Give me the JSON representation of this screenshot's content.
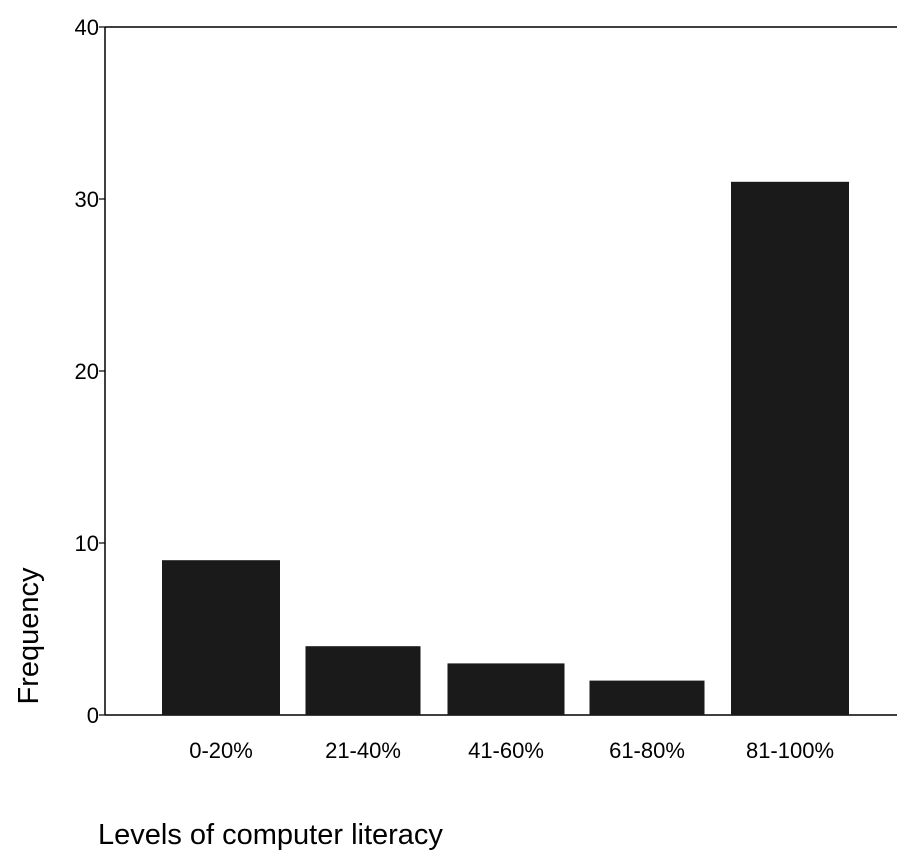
{
  "chart_data": {
    "type": "bar",
    "title": "",
    "xlabel": "Levels of computer literacy",
    "ylabel": "Frequency",
    "categories": [
      "0-20%",
      "21-40%",
      "41-60%",
      "61-80%",
      "81-100%"
    ],
    "values": [
      9,
      4,
      3,
      2,
      31
    ],
    "ylim": [
      0,
      40
    ],
    "yticks": [
      0,
      10,
      20,
      30,
      40
    ],
    "grid": false,
    "legend": "none",
    "colors": {
      "bar": "#1a1a1a",
      "axis": "#000000",
      "background": "#ffffff"
    }
  }
}
